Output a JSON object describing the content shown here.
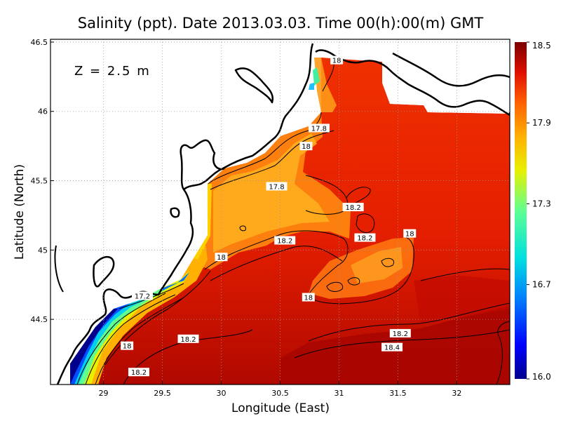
{
  "chart_data": {
    "type": "heatmap",
    "title": "Salinity (ppt). Date 2013.03.03. Time 00(h):00(m) GMT",
    "xlabel": "Longitude (East)",
    "ylabel": "Latitude (North)",
    "annotation": "Z = 2.5 m",
    "xlim": [
      28.55,
      32.45
    ],
    "ylim": [
      44.03,
      46.52
    ],
    "x_ticks": [
      29,
      29.5,
      30,
      30.5,
      31,
      31.5,
      32
    ],
    "x_tick_labels": [
      "29",
      "29.5",
      "30",
      "30.5",
      "31",
      "31.5",
      "32"
    ],
    "y_ticks": [
      44.5,
      45,
      45.5,
      46,
      46.5
    ],
    "y_tick_labels": [
      "44.5",
      "45",
      "45.5",
      "46",
      "46.5"
    ],
    "grid": true,
    "colorbar": {
      "min": 16.0,
      "max": 18.5,
      "tick_values": [
        16.0,
        16.7,
        17.3,
        17.9,
        18.5
      ],
      "tick_labels": [
        "16.0",
        "16.7",
        "17.3",
        "17.9",
        "18.5"
      ],
      "colors": [
        "#00008c",
        "#0000ff",
        "#0080ff",
        "#00e0e0",
        "#60ff90",
        "#e8f000",
        "#ffb000",
        "#ff6000",
        "#e01000",
        "#7a0000"
      ]
    },
    "contour_labels": [
      {
        "text": "18",
        "lon": 30.98,
        "lat": 46.37
      },
      {
        "text": "17.8",
        "lon": 30.83,
        "lat": 45.88
      },
      {
        "text": "18",
        "lon": 30.72,
        "lat": 45.75
      },
      {
        "text": "17.8",
        "lon": 30.47,
        "lat": 45.46
      },
      {
        "text": "18.2",
        "lon": 31.12,
        "lat": 45.31
      },
      {
        "text": "18.2",
        "lon": 31.22,
        "lat": 45.09
      },
      {
        "text": "18",
        "lon": 31.6,
        "lat": 45.12
      },
      {
        "text": "18.2",
        "lon": 30.54,
        "lat": 45.07
      },
      {
        "text": "18",
        "lon": 30.0,
        "lat": 44.95
      },
      {
        "text": "18",
        "lon": 30.74,
        "lat": 44.66
      },
      {
        "text": "17.2",
        "lon": 29.33,
        "lat": 44.67
      },
      {
        "text": "18.2",
        "lon": 31.52,
        "lat": 44.4
      },
      {
        "text": "18.2",
        "lon": 29.72,
        "lat": 44.36
      },
      {
        "text": "18.4",
        "lon": 31.45,
        "lat": 44.3
      },
      {
        "text": "18",
        "lon": 29.2,
        "lat": 44.31
      },
      {
        "text": "18.2",
        "lon": 29.3,
        "lat": 44.12
      }
    ]
  }
}
